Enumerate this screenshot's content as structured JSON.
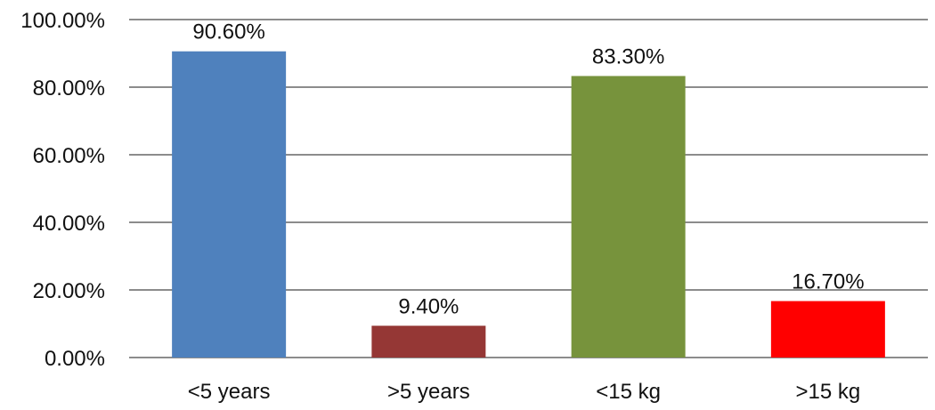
{
  "chart_data": {
    "type": "bar",
    "categories": [
      "<5 years",
      ">5 years",
      "<15 kg",
      ">15 kg"
    ],
    "values": [
      90.6,
      9.4,
      83.3,
      16.7
    ],
    "data_labels": [
      "90.60%",
      "9.40%",
      "83.30%",
      "16.70%"
    ],
    "colors": [
      "#4f81bd",
      "#953735",
      "#77933c",
      "#ff0000"
    ],
    "ylim": [
      0,
      100
    ],
    "y_ticks": [
      0,
      20,
      40,
      60,
      80,
      100
    ],
    "y_tick_labels": [
      "0.00%",
      "20.00%",
      "40.00%",
      "60.00%",
      "80.00%",
      "100.00%"
    ],
    "grid": true,
    "legend": "none",
    "title": "",
    "xlabel": "",
    "ylabel": ""
  }
}
